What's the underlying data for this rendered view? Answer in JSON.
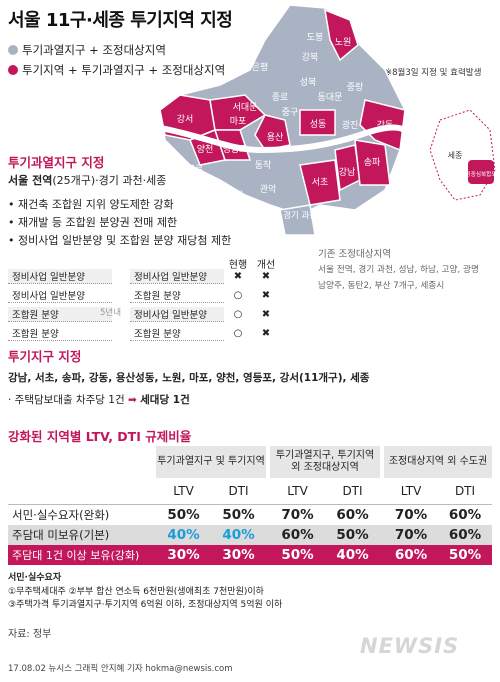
{
  "title": "서울 11구·세종 투기지역 지정",
  "legend": {
    "gray_label": "투기과열지구 + 조정대상지역",
    "pink_label": "투기지역 + 투기과열지구 + 조정대상지역",
    "gray_color": "#a9b3c4",
    "pink_color": "#c2185b"
  },
  "notice": "※8월3일 지정 및 효력발생",
  "map": {
    "districts": [
      "도봉",
      "노원",
      "강북",
      "은평",
      "성북",
      "종로",
      "동대문",
      "중랑",
      "서대문",
      "마포",
      "중구",
      "강서",
      "성동",
      "광진",
      "강동",
      "용산",
      "양천",
      "영등포",
      "동작",
      "구로",
      "송파",
      "강남",
      "금천",
      "관악",
      "서초"
    ],
    "sejong_label": "세종",
    "sejong_badge": "행정중심복합도시",
    "gwacheon": "경기 과천"
  },
  "section1": {
    "heading": "투기과열지구 지정",
    "scope_bold": "서울 전역",
    "scope_rest": "(25개구)·경기 과천·세종",
    "bullets": [
      "재건축 조합원 지위 양도제한 강화",
      "재개발 등 조합원 분양권 전매 제한",
      "정비사업 일반분양 및 조합원 분양 재당첨 제한"
    ],
    "col_current": "현행",
    "col_improved": "개선",
    "left_rows": [
      "정비사업 일반분양",
      "정비사업 일반분양",
      "조합원 분양",
      "조합원 분양"
    ],
    "middle": "5년내",
    "right_rows": [
      {
        "label": "정비사업 일반분양",
        "current": "✖",
        "improved": "✖"
      },
      {
        "label": "조합원 분양",
        "current": "○",
        "improved": "✖"
      },
      {
        "label": "정비사업 일반분양",
        "current": "○",
        "improved": "✖"
      },
      {
        "label": "조합원 분양",
        "current": "○",
        "improved": "✖"
      }
    ],
    "existing_title": "기존 조정대상지역",
    "existing_line1": "서울 전역, 경기 과천, 성남, 하남, 고양, 광명",
    "existing_line2": "남양주, 동탄2, 부산 7개구, 세종시"
  },
  "section2": {
    "heading": "투기지구 지정",
    "districts": "강남, 서초, 송파, 강동, 용산성동, 노원, 마포, 양천, 영등포, 강서(11개구), 세종",
    "loan_prefix": "· 주택담보대출 차주당 1건",
    "loan_suffix": "세대당 1건"
  },
  "section3": {
    "heading": "강화된 지역별 LTV, DTI 규제비율",
    "groups": [
      "투기과열지구 및 투기지역",
      "투기과열지구, 투기지역 외 조정대상지역",
      "조정대상지역 외 수도권"
    ],
    "sub": [
      "LTV",
      "DTI",
      "LTV",
      "DTI",
      "LTV",
      "DTI"
    ],
    "rows": [
      {
        "label": "서민·실수요자(완화)",
        "values": [
          "50%",
          "50%",
          "70%",
          "60%",
          "70%",
          "60%"
        ]
      },
      {
        "label": "주담대 미보유(기본)",
        "values": [
          "40%",
          "40%",
          "60%",
          "50%",
          "70%",
          "60%"
        ]
      },
      {
        "label": "주담대 1건 이상 보유(강화)",
        "values": [
          "30%",
          "30%",
          "50%",
          "40%",
          "60%",
          "50%"
        ]
      }
    ]
  },
  "footnotes": {
    "title": "서민·실수요자",
    "line1": "①무주택세대주 ②부부 합산 연소득 6천만원(생애최초 7천만원)이하",
    "line2": "③주택가격 투기과열지구·투기지역 6억원 이하, 조정대상지역 5억원 이하"
  },
  "source": "자료: 정부",
  "credit": "17.08.02 뉴시스 그래픽 안지혜 기자 hokma@newsis.com",
  "logo": "NEWSIS"
}
